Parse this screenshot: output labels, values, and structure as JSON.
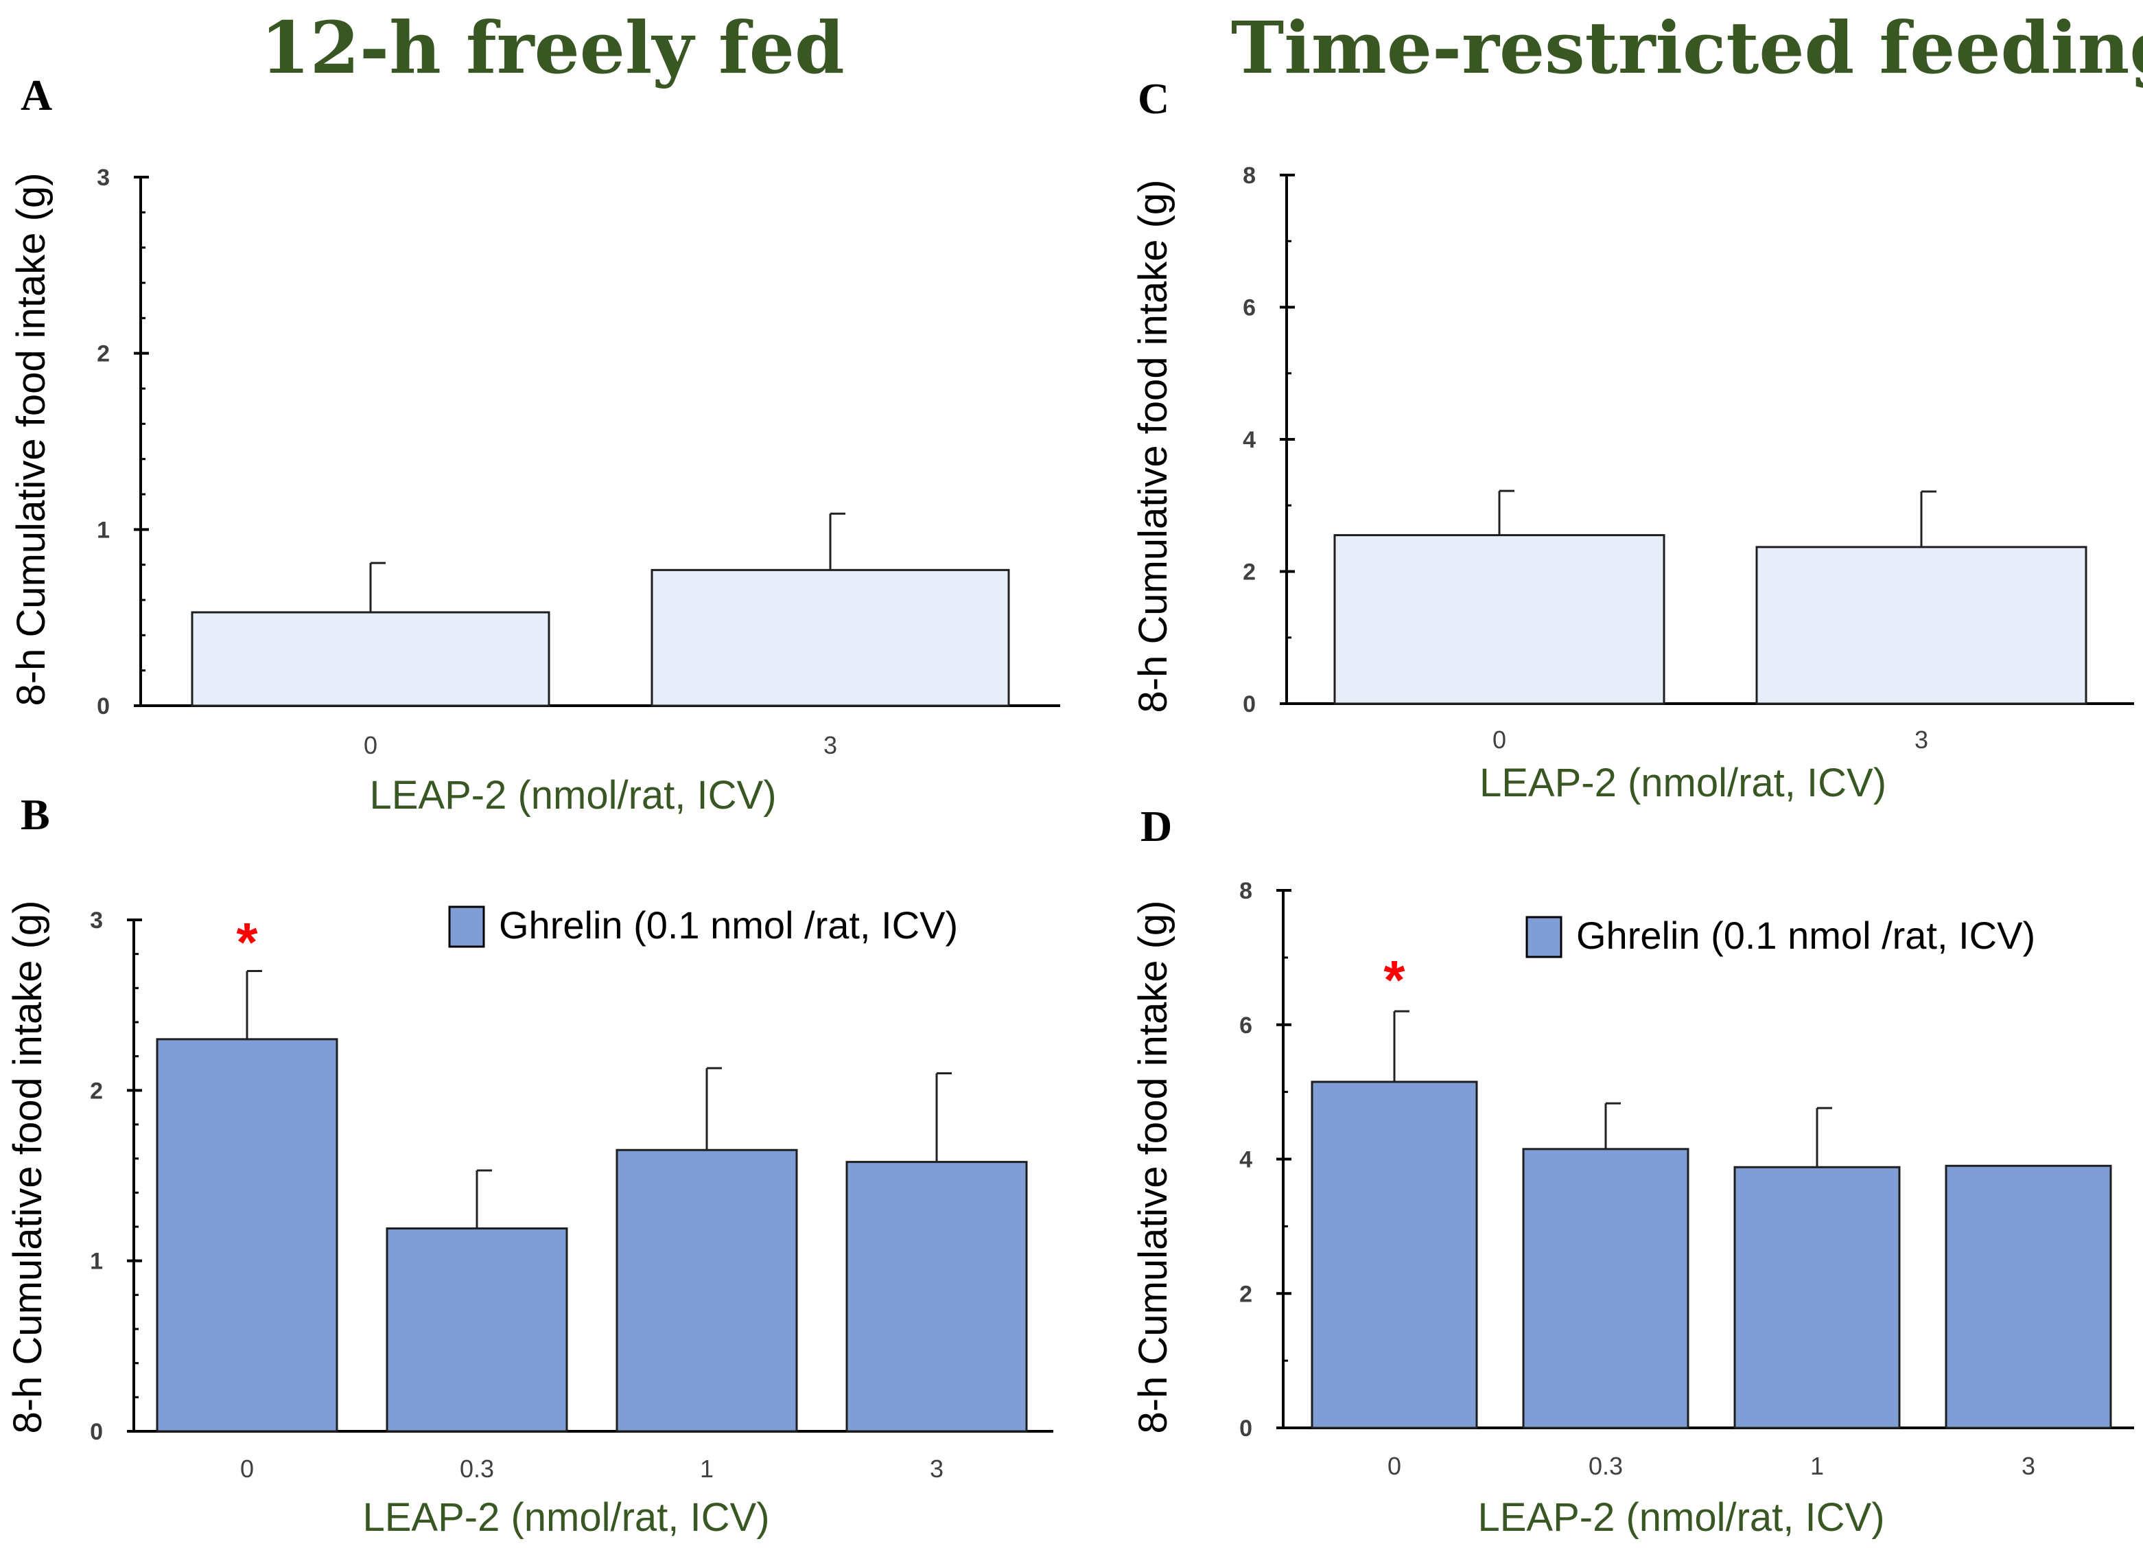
{
  "column_titles": {
    "left": "12-h freely fed",
    "right": "Time-restricted feeding"
  },
  "colors": {
    "title": "#385723",
    "bar_light": "#E7EEF9",
    "bar_blue": "#7F9ED6",
    "bar_edge": "#1f1f1f",
    "significance": "#FF0000"
  },
  "chart_data": [
    {
      "panel": "A",
      "type": "bar",
      "categories": [
        "0",
        "3"
      ],
      "values": [
        0.53,
        0.77
      ],
      "errors": [
        0.28,
        0.32
      ],
      "ylim": [
        0,
        3
      ],
      "yticks": [
        0,
        1,
        2,
        3
      ],
      "minor_step": 0.2,
      "ylabel": "8-h Cumulative food intake (g)",
      "xlabel": "LEAP-2 (nmol/rat, ICV)",
      "bar_color": "#E7EEF9",
      "legend": null,
      "significance": []
    },
    {
      "panel": "B",
      "type": "bar",
      "categories": [
        "0",
        "0.3",
        "1",
        "3"
      ],
      "values": [
        2.3,
        1.19,
        1.65,
        1.58
      ],
      "errors": [
        0.4,
        0.34,
        0.48,
        0.52
      ],
      "ylim": [
        0,
        3
      ],
      "yticks": [
        0,
        1,
        2,
        3
      ],
      "minor_step": 0.2,
      "ylabel": "8-h Cumulative food intake (g)",
      "xlabel": "LEAP-2 (nmol/rat, ICV)",
      "bar_color": "#7F9ED6",
      "legend": "Ghrelin (0.1 nmol /rat, ICV)",
      "significance": [
        "0"
      ],
      "sig_symbol": "*"
    },
    {
      "panel": "C",
      "type": "bar",
      "categories": [
        "0",
        "3"
      ],
      "values": [
        2.55,
        2.37
      ],
      "errors": [
        0.67,
        0.84
      ],
      "ylim": [
        0,
        8
      ],
      "yticks": [
        0,
        2,
        4,
        6,
        8
      ],
      "minor_step": 1,
      "ylabel": "8-h Cumulative food intake (g)",
      "xlabel": "LEAP-2 (nmol/rat, ICV)",
      "bar_color": "#E7EEF9",
      "legend": null,
      "significance": []
    },
    {
      "panel": "D",
      "type": "bar",
      "categories": [
        "0",
        "0.3",
        "1",
        "3"
      ],
      "values": [
        5.15,
        4.15,
        3.88,
        3.9
      ],
      "errors": [
        1.05,
        0.68,
        0.88,
        0
      ],
      "ylim": [
        0,
        8
      ],
      "yticks": [
        0,
        2,
        4,
        6,
        8
      ],
      "minor_step": 1,
      "ylabel": "8-h Cumulative food intake (g)",
      "xlabel": "LEAP-2 (nmol/rat, ICV)",
      "bar_color": "#7F9ED6",
      "legend": "Ghrelin (0.1 nmol /rat, ICV)",
      "significance": [
        "0"
      ],
      "sig_symbol": "*"
    }
  ]
}
